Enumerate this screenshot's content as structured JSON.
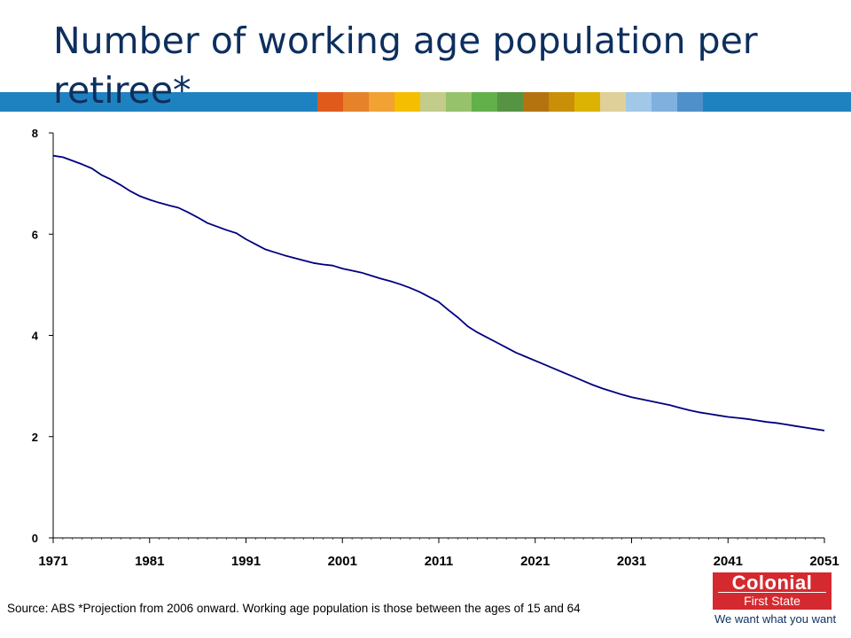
{
  "slide": {
    "title": "Number of working age population per retiree*",
    "source": "Source: ABS *Projection from 2006 onward. Working age population is those between the ages of 15 and 64",
    "band_color": "#1f82c0",
    "swatch_colors": [
      "#e05a1c",
      "#e5822a",
      "#f2a134",
      "#f6be00",
      "#c3cc8a",
      "#96c26c",
      "#62b049",
      "#569343",
      "#b5730f",
      "#c98f07",
      "#dcb303",
      "#dfd09a",
      "#a2c8e7",
      "#7fb0de",
      "#4f90cb"
    ]
  },
  "logo": {
    "name": "Colonial",
    "sub": "First State",
    "tagline": "We want what you want"
  },
  "chart_data": {
    "type": "line",
    "title": "",
    "xlabel": "",
    "ylabel": "",
    "xlim": [
      1971,
      2051
    ],
    "ylim": [
      0,
      8
    ],
    "xticks": [
      1971,
      1981,
      1991,
      2001,
      2011,
      2021,
      2031,
      2041,
      2051
    ],
    "yticks": [
      0,
      2,
      4,
      6,
      8
    ],
    "grid": false,
    "line_color": "#000080",
    "series": [
      {
        "x": [
          1971,
          1972,
          1973,
          1974,
          1975,
          1976,
          1977,
          1978,
          1979,
          1980,
          1981,
          1982,
          1983,
          1984,
          1985,
          1986,
          1987,
          1988,
          1989,
          1990,
          1991,
          1992,
          1993,
          1994,
          1995,
          1996,
          1997,
          1998,
          1999,
          2000,
          2001,
          2002,
          2003,
          2004,
          2005,
          2006,
          2007,
          2008,
          2009,
          2010,
          2011,
          2012,
          2013,
          2014,
          2015,
          2016,
          2017,
          2018,
          2019,
          2020,
          2021,
          2022,
          2023,
          2024,
          2025,
          2026,
          2027,
          2028,
          2029,
          2030,
          2031,
          2032,
          2033,
          2034,
          2035,
          2036,
          2037,
          2038,
          2039,
          2040,
          2041,
          2042,
          2043,
          2044,
          2045,
          2046,
          2047,
          2048,
          2049,
          2050,
          2051
        ],
        "values": [
          7.55,
          7.52,
          7.45,
          7.38,
          7.3,
          7.17,
          7.08,
          6.97,
          6.85,
          6.75,
          6.68,
          6.62,
          6.57,
          6.52,
          6.43,
          6.33,
          6.22,
          6.15,
          6.08,
          6.02,
          5.9,
          5.8,
          5.7,
          5.64,
          5.58,
          5.53,
          5.48,
          5.43,
          5.4,
          5.38,
          5.32,
          5.28,
          5.24,
          5.18,
          5.12,
          5.07,
          5.01,
          4.94,
          4.86,
          4.76,
          4.66,
          4.5,
          4.35,
          4.18,
          4.06,
          3.96,
          3.86,
          3.76,
          3.66,
          3.58,
          3.5,
          3.42,
          3.34,
          3.26,
          3.18,
          3.1,
          3.02,
          2.95,
          2.89,
          2.83,
          2.78,
          2.74,
          2.7,
          2.66,
          2.62,
          2.57,
          2.52,
          2.48,
          2.45,
          2.42,
          2.39,
          2.37,
          2.35,
          2.32,
          2.29,
          2.27,
          2.24,
          2.21,
          2.18,
          2.15,
          2.12
        ]
      }
    ]
  }
}
